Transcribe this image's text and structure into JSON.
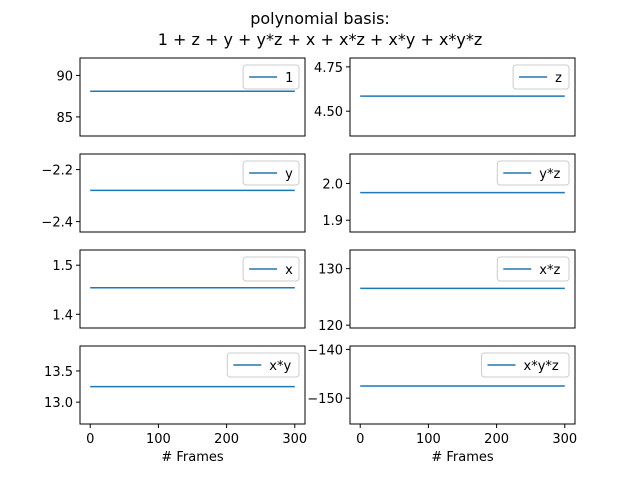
{
  "chart_data": {
    "type": "line",
    "title": [
      "polynomial basis:",
      "1 + z + y + y*z + x + x*z + x*y + x*y*z"
    ],
    "xlabel": "# Frames",
    "xlim": [
      -15,
      315
    ],
    "xticks": [
      0,
      100,
      200,
      300
    ],
    "x": [
      0,
      300
    ],
    "line_color": "#1f77b4",
    "legend_loc": "upper right",
    "grid": false,
    "subplots": [
      {
        "series": "1",
        "values": [
          88.1,
          88.1
        ],
        "ylim": [
          82.7,
          92.1
        ],
        "yticks": [
          85,
          90
        ]
      },
      {
        "series": "z",
        "values": [
          4.585,
          4.585
        ],
        "ylim": [
          4.36,
          4.8
        ],
        "yticks": [
          4.5,
          4.75
        ],
        "yfmt": 2
      },
      {
        "series": "y",
        "values": [
          -2.28,
          -2.28
        ],
        "ylim": [
          -2.44,
          -2.14
        ],
        "yticks": [
          -2.4,
          -2.2
        ],
        "yfmt": 1
      },
      {
        "series": "y*z",
        "values": [
          1.975,
          1.975
        ],
        "ylim": [
          1.868,
          2.08
        ],
        "yticks": [
          1.9,
          2.0
        ],
        "yfmt": 1
      },
      {
        "series": "x",
        "values": [
          1.454,
          1.454
        ],
        "ylim": [
          1.372,
          1.531
        ],
        "yticks": [
          1.4,
          1.5
        ],
        "yfmt": 1
      },
      {
        "series": "x*z",
        "values": [
          126.5,
          126.5
        ],
        "ylim": [
          119.5,
          133.3
        ],
        "yticks": [
          120,
          130
        ]
      },
      {
        "series": "x*y",
        "values": [
          13.25,
          13.25
        ],
        "ylim": [
          12.65,
          13.9
        ],
        "yticks": [
          13.0,
          13.5
        ],
        "yfmt": 1
      },
      {
        "series": "x*y*z",
        "values": [
          -147.5,
          -147.5
        ],
        "ylim": [
          -155.3,
          -139.3
        ],
        "yticks": [
          -150,
          -140
        ]
      }
    ]
  }
}
